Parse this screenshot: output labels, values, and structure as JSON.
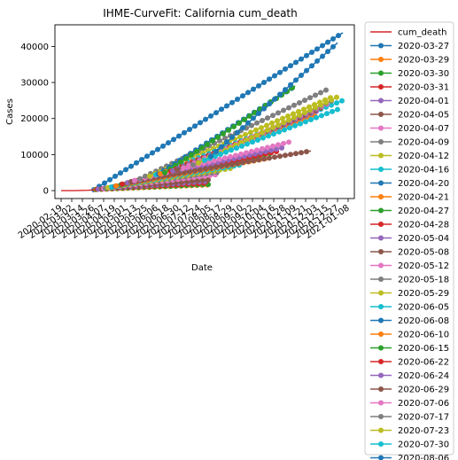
{
  "chart_data": {
    "type": "line",
    "title": "IHME-CurveFit: California cum_death",
    "xlabel": "Date",
    "ylabel": "Cases",
    "x_type": "date",
    "xlim": [
      "2020-02-12",
      "2021-01-15"
    ],
    "ylim": [
      -2200,
      46000
    ],
    "y_ticks": [
      0,
      10000,
      20000,
      30000,
      40000
    ],
    "x_ticks": [
      "2020-02-19",
      "2020-03-02",
      "2020-03-14",
      "2020-03-26",
      "2020-04-07",
      "2020-04-19",
      "2020-05-01",
      "2020-05-13",
      "2020-05-25",
      "2020-06-06",
      "2020-06-18",
      "2020-06-30",
      "2020-07-12",
      "2020-07-24",
      "2020-08-05",
      "2020-08-17",
      "2020-08-29",
      "2020-09-10",
      "2020-09-22",
      "2020-10-04",
      "2020-10-16",
      "2020-10-28",
      "2020-11-09",
      "2020-11-21",
      "2020-12-03",
      "2020-12-15",
      "2020-12-27",
      "2021-01-08"
    ],
    "grid": false,
    "legend_position": "outside-right",
    "observed": {
      "name": "cum_death",
      "color": "#d62728",
      "x": [
        "2020-02-19",
        "2020-03-05",
        "2020-03-20",
        "2020-03-28"
      ],
      "y": [
        0,
        10,
        100,
        250
      ]
    },
    "series": [
      {
        "name": "2020-03-27",
        "color": "#1f77b4",
        "x": [
          "2020-03-27",
          "2021-01-02"
        ],
        "y": [
          250,
          43800
        ]
      },
      {
        "name": "2020-03-29",
        "color": "#ff7f0e",
        "x": [
          "2020-03-29",
          "2020-08-03"
        ],
        "y": [
          300,
          1600
        ]
      },
      {
        "name": "2020-03-30",
        "color": "#2ca02c",
        "x": [
          "2020-03-30",
          "2020-08-03"
        ],
        "y": [
          350,
          1700
        ]
      },
      {
        "name": "2020-03-31",
        "color": "#d62728",
        "x": [
          "2020-03-31",
          "2020-08-03"
        ],
        "y": [
          400,
          2100
        ]
      },
      {
        "name": "2020-04-01",
        "color": "#9467bd",
        "x": [
          "2020-04-01",
          "2020-08-03"
        ],
        "y": [
          400,
          2600
        ]
      },
      {
        "name": "2020-04-05",
        "color": "#8c564b",
        "x": [
          "2020-04-05",
          "2020-08-03"
        ],
        "y": [
          500,
          3000
        ]
      },
      {
        "name": "2020-04-07",
        "color": "#e377c2",
        "x": [
          "2020-04-07",
          "2020-08-15"
        ],
        "y": [
          600,
          4500
        ]
      },
      {
        "name": "2020-04-09",
        "color": "#7f7f7f",
        "x": [
          "2020-04-09",
          "2020-08-15"
        ],
        "y": [
          700,
          5200
        ]
      },
      {
        "name": "2020-04-12",
        "color": "#bcbd22",
        "x": [
          "2020-04-12",
          "2020-08-29"
        ],
        "y": [
          800,
          6200
        ]
      },
      {
        "name": "2020-04-16",
        "color": "#17becf",
        "x": [
          "2020-04-16",
          "2020-09-10"
        ],
        "y": [
          1000,
          7200
        ]
      },
      {
        "name": "2020-04-20",
        "color": "#1f77b4",
        "x": [
          "2020-04-20",
          "2020-10-04"
        ],
        "y": [
          1200,
          9000
        ]
      },
      {
        "name": "2020-04-21",
        "color": "#ff7f0e",
        "x": [
          "2020-04-21",
          "2020-10-10"
        ],
        "y": [
          1300,
          9000
        ]
      },
      {
        "name": "2020-04-27",
        "color": "#2ca02c",
        "x": [
          "2020-04-27",
          "2020-10-16"
        ],
        "y": [
          1700,
          10500
        ]
      },
      {
        "name": "2020-04-28",
        "color": "#d62728",
        "x": [
          "2020-04-28",
          "2020-10-22"
        ],
        "y": [
          1800,
          11000
        ]
      },
      {
        "name": "2020-05-04",
        "color": "#9467bd",
        "x": [
          "2020-05-04",
          "2020-10-28"
        ],
        "y": [
          2200,
          12000
        ]
      },
      {
        "name": "2020-05-08",
        "color": "#8c564b",
        "x": [
          "2020-05-08",
          "2020-11-27"
        ],
        "y": [
          2500,
          11000
        ]
      },
      {
        "name": "2020-05-12",
        "color": "#e377c2",
        "x": [
          "2020-05-12",
          "2020-11-03"
        ],
        "y": [
          2800,
          13500
        ]
      },
      {
        "name": "2020-05-18",
        "color": "#7f7f7f",
        "x": [
          "2020-05-18",
          "2020-12-15"
        ],
        "y": [
          3300,
          28000
        ]
      },
      {
        "name": "2020-05-29",
        "color": "#bcbd22",
        "x": [
          "2020-05-29",
          "2020-12-21"
        ],
        "y": [
          4000,
          26000
        ]
      },
      {
        "name": "2020-06-05",
        "color": "#17becf",
        "x": [
          "2020-06-05",
          "2021-01-02"
        ],
        "y": [
          4400,
          25000
        ]
      },
      {
        "name": "2020-06-08",
        "color": "#1f77b4",
        "x": [
          "2020-06-08",
          "2020-11-09"
        ],
        "y": [
          4600,
          29000
        ]
      },
      {
        "name": "2020-06-10",
        "color": "#ff7f0e",
        "x": [
          "2020-06-10",
          "2020-12-03"
        ],
        "y": [
          4700,
          21000
        ]
      },
      {
        "name": "2020-06-15",
        "color": "#2ca02c",
        "x": [
          "2020-06-15",
          "2020-11-09"
        ],
        "y": [
          5000,
          29000
        ]
      },
      {
        "name": "2020-06-22",
        "color": "#d62728",
        "x": [
          "2020-06-22",
          "2020-11-21"
        ],
        "y": [
          5400,
          21000
        ]
      },
      {
        "name": "2020-06-24",
        "color": "#9467bd",
        "x": [
          "2020-06-24",
          "2020-12-03"
        ],
        "y": [
          5500,
          22000
        ]
      },
      {
        "name": "2020-06-29",
        "color": "#8c564b",
        "x": [
          "2020-06-29",
          "2020-12-09"
        ],
        "y": [
          5800,
          23000
        ]
      },
      {
        "name": "2020-07-06",
        "color": "#e377c2",
        "x": [
          "2020-07-06",
          "2020-12-15"
        ],
        "y": [
          6300,
          24000
        ]
      },
      {
        "name": "2020-07-17",
        "color": "#7f7f7f",
        "x": [
          "2020-07-17",
          "2020-12-21"
        ],
        "y": [
          7100,
          25000
        ]
      },
      {
        "name": "2020-07-23",
        "color": "#bcbd22",
        "x": [
          "2020-07-23",
          "2020-12-27"
        ],
        "y": [
          7700,
          26000
        ]
      },
      {
        "name": "2020-07-30",
        "color": "#17becf",
        "x": [
          "2020-07-30",
          "2020-12-27"
        ],
        "y": [
          8400,
          22500
        ]
      },
      {
        "name": "2020-08-06",
        "color": "#1f77b4",
        "x": [
          "2020-08-06",
          "2020-12-27"
        ],
        "y": [
          9500,
          41000
        ]
      }
    ]
  }
}
